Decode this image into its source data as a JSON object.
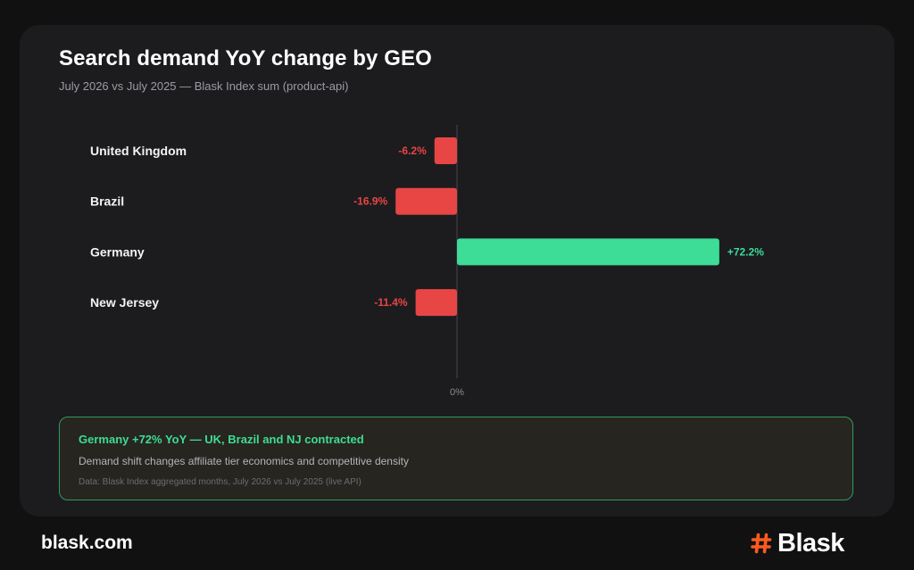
{
  "header": {
    "title": "Search demand YoY change by GEO",
    "subtitle": "July 2026 vs July 2025 — Blask Index sum (product-api)"
  },
  "chart_data": {
    "type": "bar",
    "orientation": "horizontal",
    "categories": [
      "United Kingdom",
      "Brazil",
      "Germany",
      "New Jersey"
    ],
    "values": [
      -6.2,
      -16.9,
      72.2,
      -11.4
    ],
    "value_labels": [
      "-6.2%",
      "-16.9%",
      "+72.2%",
      "-11.4%"
    ],
    "axis_tick_label": "0%",
    "colors": {
      "positive": "#3ddc97",
      "negative": "#e84545"
    },
    "grid": false
  },
  "insight": {
    "headline": "Germany +72% YoY — UK, Brazil and NJ contracted",
    "body": "Demand shift changes affiliate tier economics and competitive density",
    "note": "Data: Blask Index aggregated months, July 2026 vs July 2025 (live API)"
  },
  "footer": {
    "site": "blask.com",
    "brand_name": "Blask",
    "brand_icon": "hash-icon"
  },
  "colors": {
    "page_bg": "#111112",
    "card_bg": "#1c1c1f",
    "accent_green": "#3ddc95",
    "accent_red": "#e84545",
    "brand_orange": "#ff5a1f"
  }
}
